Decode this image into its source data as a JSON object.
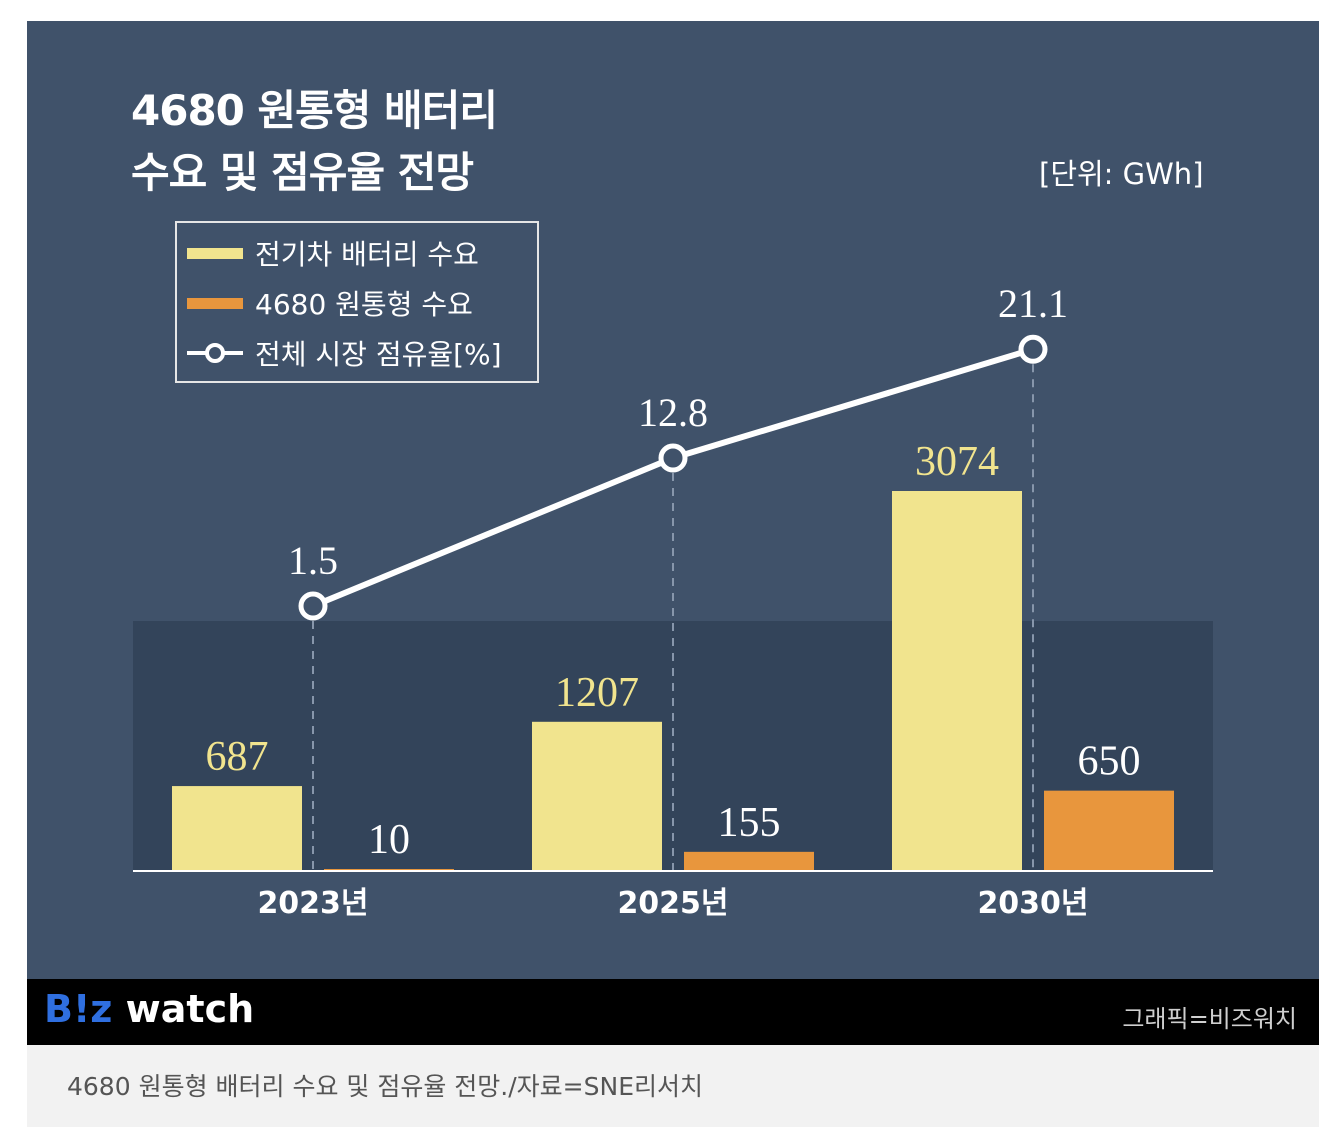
{
  "header": {
    "title_line1": "4680 원통형 배터리",
    "title_line2": "수요 및 점유율 전망",
    "unit": "[단위: GWh]"
  },
  "legend": {
    "items": [
      {
        "label": "전기차 배터리 수요",
        "kind": "bar",
        "color": "#f1e48e"
      },
      {
        "label": "4680 원통형 수요",
        "kind": "bar",
        "color": "#e8963d"
      },
      {
        "label": "전체 시장 점유율[%]",
        "kind": "line",
        "color": "#ffffff"
      }
    ]
  },
  "chart_data": {
    "type": "bar",
    "categories": [
      "2023년",
      "2025년",
      "2030년"
    ],
    "series": [
      {
        "name": "전기차 배터리 수요",
        "type": "bar",
        "values": [
          687,
          1207,
          3074
        ],
        "labels": [
          "687",
          "1207",
          "3074"
        ],
        "color": "#f1e48e"
      },
      {
        "name": "4680 원통형 수요",
        "type": "bar",
        "values": [
          10,
          155,
          650
        ],
        "labels": [
          "10",
          "155",
          "650"
        ],
        "color": "#e8963d"
      },
      {
        "name": "전체 시장 점유율[%]",
        "type": "line",
        "values": [
          1.5,
          12.8,
          21.1
        ],
        "labels": [
          "1.5",
          "12.8",
          "21.1"
        ],
        "color": "#ffffff"
      }
    ],
    "title": "4680 원통형 배터리 수요 및 점유율 전망",
    "xlabel": "",
    "ylabel": "",
    "unit": "GWh",
    "grid": false,
    "legend_position": "top-left"
  },
  "footer": {
    "brand_b": "B!z",
    "brand_w": " watch",
    "credit": "그래픽=비즈워치"
  },
  "caption": "4680 원통형 배터리 수요 및 점유율 전망./자료=SNE리서치"
}
